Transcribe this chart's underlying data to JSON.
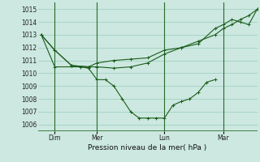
{
  "xlabel": "Pression niveau de la mer( hPa )",
  "bg_color": "#cce8e0",
  "line_color": "#1a5c1a",
  "grid_color": "#99ccbb",
  "ylim": [
    1005.5,
    1015.5
  ],
  "yticks": [
    1006,
    1007,
    1008,
    1009,
    1010,
    1011,
    1012,
    1013,
    1014,
    1015
  ],
  "xlim": [
    0,
    13
  ],
  "xtick_labels": [
    "Dim",
    "Mer",
    "Lun",
    "Mar"
  ],
  "xtick_positions": [
    1.0,
    3.5,
    7.5,
    11.0
  ],
  "vline_positions": [
    1.0,
    3.5,
    7.5,
    11.0
  ],
  "lines": [
    {
      "x": [
        0.2,
        1.0,
        2.0,
        3.0,
        3.5,
        4.5,
        5.5,
        6.5,
        7.5,
        8.5,
        9.5,
        10.5,
        11.0,
        11.5,
        12.0,
        12.5,
        13.0
      ],
      "y": [
        1013.0,
        1011.8,
        1010.6,
        1010.5,
        1010.8,
        1011.0,
        1011.1,
        1011.2,
        1011.8,
        1012.0,
        1012.3,
        1013.5,
        1013.8,
        1014.2,
        1014.0,
        1013.8,
        1015.0
      ]
    },
    {
      "x": [
        0.2,
        1.0,
        2.0,
        3.0,
        3.5,
        4.5,
        5.5,
        6.5,
        7.5,
        8.5,
        9.5,
        10.5,
        11.0,
        11.5,
        12.0,
        12.5,
        13.0
      ],
      "y": [
        1013.0,
        1011.8,
        1010.6,
        1010.5,
        1010.5,
        1010.4,
        1010.5,
        1010.8,
        1011.5,
        1012.0,
        1012.5,
        1013.0,
        1013.5,
        1013.8,
        1014.2,
        1014.5,
        1015.0
      ]
    },
    {
      "x": [
        0.2,
        1.0,
        2.5,
        3.0,
        3.5,
        4.0,
        4.5,
        5.0,
        5.5,
        6.0,
        6.5,
        7.0,
        7.5,
        8.0,
        8.5,
        9.0,
        9.5,
        10.0,
        10.5
      ],
      "y": [
        1013.0,
        1010.5,
        1010.5,
        1010.4,
        1009.5,
        1009.5,
        1009.0,
        1008.0,
        1007.0,
        1006.5,
        1006.5,
        1006.5,
        1006.5,
        1007.5,
        1007.8,
        1008.0,
        1008.5,
        1009.3,
        1009.5
      ]
    }
  ]
}
